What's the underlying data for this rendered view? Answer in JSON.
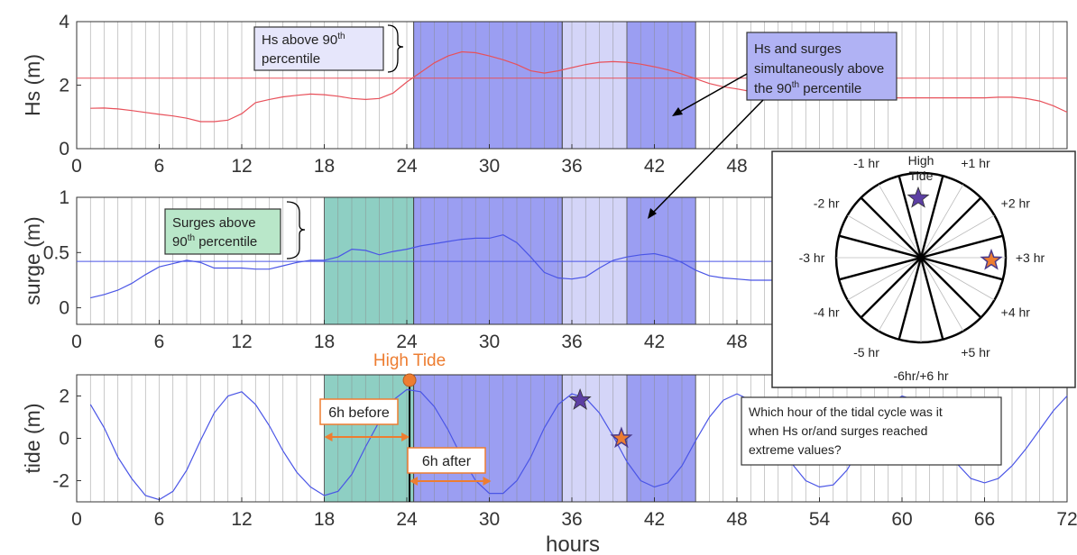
{
  "colors": {
    "hs_line": "#e8505a",
    "blue_line": "#4a55e6",
    "both_band": "#9b9ef2",
    "hs_band": "#d4d5f8",
    "surge_band": "#8ecfc3",
    "orange": "#ed7d31",
    "purple_star": "#5c3fa3",
    "hs_note_bg": "#e6e6fb",
    "both_note_bg": "#b0b2f4",
    "surge_note_bg": "#b9e7c9"
  },
  "annotations": {
    "hs_note": [
      "Hs above 90",
      "th",
      "percentile"
    ],
    "both_note": [
      "Hs and surges",
      "simultaneously above",
      "the 90",
      "th",
      " percentile"
    ],
    "surge_note": [
      "Surges above",
      "90",
      "th",
      " percentile"
    ],
    "high_tide": "High Tide",
    "before": "6h before",
    "after": "6h after",
    "question": [
      "Which hour of the tidal cycle was it",
      "when Hs or/and surges reached",
      "extreme values?"
    ]
  },
  "clock": {
    "top_label": [
      "High",
      "Tide"
    ],
    "labels": [
      "+1 hr",
      "+2 hr",
      "+3 hr",
      "+4 hr",
      "+5 hr",
      "-6hr/+6 hr",
      "-5 hr",
      "-4 hr",
      "-3 hr",
      "-2 hr",
      "-1 hr"
    ]
  },
  "chart_data": [
    {
      "type": "line",
      "ylabel": "Hs (m)",
      "xlabel": "",
      "xlim": [
        0,
        72
      ],
      "ylim": [
        0,
        4
      ],
      "x_ticks": [
        0,
        6,
        12,
        18,
        24,
        30,
        36,
        42,
        48
      ],
      "y_ticks": [
        0,
        2,
        4
      ],
      "threshold": 2.22,
      "x": [
        1,
        2,
        3,
        4,
        5,
        6,
        7,
        8,
        9,
        10,
        11,
        12,
        13,
        14,
        15,
        16,
        17,
        18,
        19,
        20,
        21,
        22,
        23,
        24,
        25,
        26,
        27,
        28,
        29,
        30,
        31,
        32,
        33,
        34,
        35,
        36,
        37,
        38,
        39,
        40,
        41,
        42,
        43,
        44,
        45,
        46,
        47,
        48,
        49,
        50,
        51,
        52,
        53,
        54,
        55,
        56,
        57,
        58,
        59,
        60,
        61,
        62,
        63,
        64,
        65,
        66,
        67,
        68,
        69,
        70,
        71,
        72
      ],
      "y": [
        1.27,
        1.28,
        1.25,
        1.2,
        1.14,
        1.08,
        1.03,
        0.96,
        0.85,
        0.85,
        0.9,
        1.1,
        1.45,
        1.55,
        1.63,
        1.68,
        1.72,
        1.7,
        1.65,
        1.58,
        1.55,
        1.58,
        1.75,
        2.1,
        2.4,
        2.7,
        2.92,
        3.05,
        3.02,
        2.92,
        2.8,
        2.65,
        2.45,
        2.38,
        2.45,
        2.55,
        2.65,
        2.72,
        2.74,
        2.72,
        2.66,
        2.58,
        2.48,
        2.35,
        2.2,
        2.05,
        1.95,
        1.88,
        1.8,
        1.72,
        1.65,
        1.62,
        1.6,
        1.6,
        1.6,
        1.6,
        1.6,
        1.6,
        1.6,
        1.6,
        1.6,
        1.6,
        1.6,
        1.6,
        1.6,
        1.6,
        1.62,
        1.62,
        1.58,
        1.5,
        1.35,
        1.15
      ]
    },
    {
      "type": "line",
      "ylabel": "surge (m)",
      "xlabel": "",
      "xlim": [
        0,
        72
      ],
      "ylim": [
        -0.15,
        1
      ],
      "x_ticks": [
        0,
        6,
        12,
        18,
        24,
        30,
        36,
        42,
        48
      ],
      "y_ticks": [
        0,
        0.5,
        1
      ],
      "threshold": 0.42,
      "x": [
        1,
        2,
        3,
        4,
        5,
        6,
        7,
        8,
        9,
        10,
        11,
        12,
        13,
        14,
        15,
        16,
        17,
        18,
        19,
        20,
        21,
        22,
        23,
        24,
        25,
        26,
        27,
        28,
        29,
        30,
        31,
        32,
        33,
        34,
        35,
        36,
        37,
        38,
        39,
        40,
        41,
        42,
        43,
        44,
        45,
        46,
        47,
        48,
        49,
        50,
        51,
        52,
        53,
        54,
        55,
        56,
        57,
        58,
        59,
        60,
        61,
        62,
        63,
        64,
        65,
        66,
        67,
        68,
        69,
        70,
        71,
        72
      ],
      "y": [
        0.09,
        0.12,
        0.16,
        0.22,
        0.3,
        0.37,
        0.4,
        0.43,
        0.41,
        0.36,
        0.36,
        0.36,
        0.35,
        0.35,
        0.38,
        0.41,
        0.43,
        0.43,
        0.46,
        0.53,
        0.52,
        0.48,
        0.51,
        0.53,
        0.56,
        0.58,
        0.6,
        0.62,
        0.63,
        0.63,
        0.66,
        0.59,
        0.46,
        0.32,
        0.27,
        0.26,
        0.28,
        0.36,
        0.43,
        0.46,
        0.48,
        0.49,
        0.46,
        0.41,
        0.34,
        0.29,
        0.27,
        0.26,
        0.25,
        0.25,
        0.25,
        0.25,
        0.25,
        0.25,
        0.25,
        0.25,
        0.25,
        0.25,
        0.25,
        0.25,
        0.25,
        0.25,
        0.25,
        0.25,
        0.25,
        0.25,
        0.25,
        0.25,
        0.25,
        0.25,
        0.25,
        0.25
      ]
    },
    {
      "type": "line",
      "ylabel": "tide (m)",
      "xlabel": "hours",
      "xlim": [
        0,
        72
      ],
      "ylim": [
        -3,
        3
      ],
      "x_ticks": [
        0,
        6,
        12,
        18,
        24,
        30,
        36,
        42,
        48,
        54,
        60,
        66,
        72
      ],
      "y_ticks": [
        -2,
        0,
        2
      ],
      "high_tide_hour": 24.2,
      "star_purple": [
        36.6,
        1.8
      ],
      "star_orange": [
        39.6,
        0.0
      ],
      "x": [
        1,
        2,
        3,
        4,
        5,
        6,
        7,
        8,
        9,
        10,
        11,
        12,
        13,
        14,
        15,
        16,
        17,
        18,
        19,
        20,
        21,
        22,
        23,
        24,
        25,
        26,
        27,
        28,
        29,
        30,
        31,
        32,
        33,
        34,
        35,
        36,
        37,
        38,
        39,
        40,
        41,
        42,
        43,
        44,
        45,
        46,
        47,
        48,
        49,
        50,
        51,
        52,
        53,
        54,
        55,
        56,
        57,
        58,
        59,
        60,
        61,
        62,
        63,
        64,
        65,
        66,
        67,
        68,
        69,
        70,
        71,
        72
      ],
      "y": [
        1.6,
        0.5,
        -0.9,
        -1.9,
        -2.7,
        -2.9,
        -2.5,
        -1.5,
        -0.1,
        1.2,
        2.0,
        2.2,
        1.6,
        0.6,
        -0.6,
        -1.6,
        -2.3,
        -2.7,
        -2.5,
        -1.7,
        -0.4,
        0.8,
        1.8,
        2.3,
        2.2,
        1.5,
        0.4,
        -0.9,
        -2.0,
        -2.6,
        -2.6,
        -2.0,
        -0.9,
        0.5,
        1.6,
        2.1,
        1.9,
        1.2,
        0.1,
        -1.1,
        -2.0,
        -2.3,
        -2.1,
        -1.3,
        -0.1,
        1.0,
        1.8,
        2.1,
        1.8,
        1.0,
        -0.1,
        -1.2,
        -2.0,
        -2.3,
        -2.2,
        -1.5,
        -0.4,
        0.7,
        1.6,
        2.0,
        1.8,
        1.1,
        0.0,
        -1.2,
        -1.9,
        -2.1,
        -1.9,
        -1.3,
        -0.5,
        0.4,
        1.3,
        2.0
      ]
    }
  ]
}
